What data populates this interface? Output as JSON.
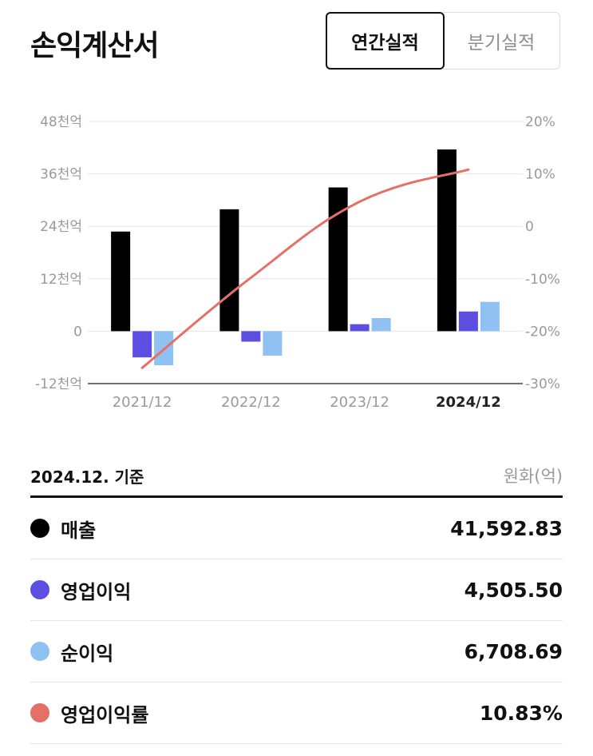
{
  "header": {
    "title": "손익계산서",
    "tabs": [
      {
        "label": "연간실적",
        "active": true
      },
      {
        "label": "분기실적",
        "active": false
      }
    ]
  },
  "chart_data": {
    "type": "bar",
    "categories": [
      "2021/12",
      "2022/12",
      "2023/12",
      "2024/12"
    ],
    "active_category": "2024/12",
    "y_left": {
      "ticks": [
        48000,
        36000,
        24000,
        12000,
        0,
        -12000
      ],
      "tick_labels": [
        "48천억",
        "36천억",
        "24천억",
        "12천억",
        "0",
        "-12천억"
      ],
      "range": [
        -12000,
        48000
      ]
    },
    "y_right": {
      "ticks": [
        20,
        10,
        0,
        -10,
        -20,
        -30
      ],
      "tick_labels": [
        "20%",
        "10%",
        "0",
        "-10%",
        "-20%",
        "-30%"
      ],
      "range": [
        -30,
        20
      ]
    },
    "series": [
      {
        "name": "매출",
        "type": "bar",
        "axis": "left",
        "color": "#000000",
        "values": [
          22800,
          27900,
          32900,
          41592.83
        ]
      },
      {
        "name": "영업이익",
        "type": "bar",
        "axis": "left",
        "color": "#5b4ee0",
        "values": [
          -6000,
          -2400,
          1600,
          4505.5
        ]
      },
      {
        "name": "순이익",
        "type": "bar",
        "axis": "left",
        "color": "#8fc2f2",
        "values": [
          -7800,
          -5600,
          3000,
          6708.69
        ]
      },
      {
        "name": "영업이익률",
        "type": "line",
        "axis": "right",
        "color": "#e57068",
        "values": [
          -27,
          -9.8,
          4.7,
          10.83
        ]
      }
    ],
    "grid": true,
    "legend": "none"
  },
  "summary": {
    "basis_label": "2024.12. 기준",
    "unit_label": "원화(억)",
    "items": [
      {
        "label": "매출",
        "value": "41,592.83",
        "color": "#000000"
      },
      {
        "label": "영업이익",
        "value": "4,505.50",
        "color": "#5b4ee0"
      },
      {
        "label": "순이익",
        "value": "6,708.69",
        "color": "#8fc2f2"
      },
      {
        "label": "영업이익률",
        "value": "10.83%",
        "color": "#e57068"
      }
    ]
  }
}
